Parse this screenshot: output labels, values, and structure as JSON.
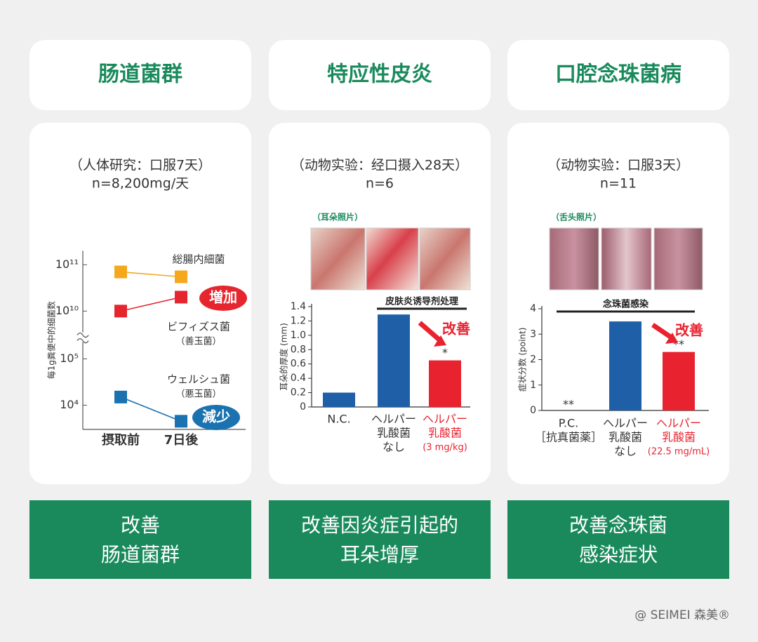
{
  "panels": [
    {
      "title": "肠道菌群",
      "study": "（人体研究：口服7天）",
      "n": "n=8,200mg/天",
      "result": [
        "改善",
        "肠道菌群"
      ]
    },
    {
      "title": "特应性皮炎",
      "study": "（动物实验：经口摄入28天）",
      "n": "n=6",
      "result": [
        "改善因炎症引起的",
        "耳朵增厚"
      ]
    },
    {
      "title": "口腔念珠菌病",
      "study": "（动物实验：口服3天）",
      "n": "n=11",
      "result": [
        "改善念珠菌",
        "感染症状"
      ]
    }
  ],
  "chart_data": [
    {
      "type": "line",
      "ylabel": "每1g粪便中的细菌数",
      "log_scale": true,
      "axis_break": [
        200000,
        4000000000
      ],
      "ylim": [
        3000,
        200000000000
      ],
      "yticks": [
        {
          "value": 10000,
          "label": "10⁴"
        },
        {
          "value": 100000,
          "label": "10⁵"
        },
        {
          "value": 10000000000,
          "label": "10¹⁰"
        },
        {
          "value": 100000000000,
          "label": "10¹¹"
        }
      ],
      "categories": [
        "摂取前",
        "7日後"
      ],
      "series": [
        {
          "name": "総腸内細菌",
          "color": "#f5a81c",
          "values": [
            70000000000,
            55000000000
          ]
        },
        {
          "name": "ビフィズス菌",
          "note": "（善玉菌）",
          "tag": "増加",
          "color": "#e5262f",
          "values": [
            10000000000,
            20000000000
          ]
        },
        {
          "name": "ウェルシュ菌",
          "note": "（悪玉菌）",
          "tag": "減少",
          "color": "#1a72b0",
          "values": [
            15000,
            4500
          ]
        }
      ]
    },
    {
      "type": "bar",
      "photo_label": "（耳朵照片）",
      "ylabel": "耳朵的厚度 (mm)",
      "ylim": [
        0,
        1.4
      ],
      "yticks": [
        0,
        0.2,
        0.4,
        0.6,
        0.8,
        {
          "value": 1,
          "label": "1.0"
        },
        1.2,
        1.4
      ],
      "categories": [
        [
          "N.C."
        ],
        [
          "ヘルパー",
          "乳酸菌",
          "なし"
        ],
        [
          "ヘルパー",
          "乳酸菌",
          "(3 mg/kg)"
        ]
      ],
      "values": [
        0.2,
        1.29,
        0.65
      ],
      "bar_colors": [
        "#1f5fa8",
        "#1f5fa8",
        "#e8232f"
      ],
      "category_colors": [
        "#333333",
        "#333333",
        "#e8232f"
      ],
      "significance": [
        null,
        null,
        "*"
      ],
      "bracket_label": "皮肤炎诱导剂处理",
      "callout": "改善"
    },
    {
      "type": "bar",
      "photo_label": "（舌头照片）",
      "ylabel": "症状分数 (point)",
      "ylim": [
        0,
        4
      ],
      "yticks": [
        0,
        1,
        2,
        3,
        4
      ],
      "categories": [
        [
          "P.C.",
          "［抗真菌薬］"
        ],
        [
          "ヘルパー",
          "乳酸菌",
          "なし"
        ],
        [
          "ヘルパー",
          "乳酸菌",
          "(22.5 mg/mL)"
        ]
      ],
      "values": [
        0,
        3.5,
        2.3
      ],
      "bar_colors": [
        "#1f5fa8",
        "#1f5fa8",
        "#e8232f"
      ],
      "category_colors": [
        "#333333",
        "#333333",
        "#e8232f"
      ],
      "significance": [
        "**",
        null,
        "**"
      ],
      "bracket_label": "念珠菌感染",
      "callout": "改善"
    }
  ],
  "footer": "@ SEIMEI 森美®"
}
